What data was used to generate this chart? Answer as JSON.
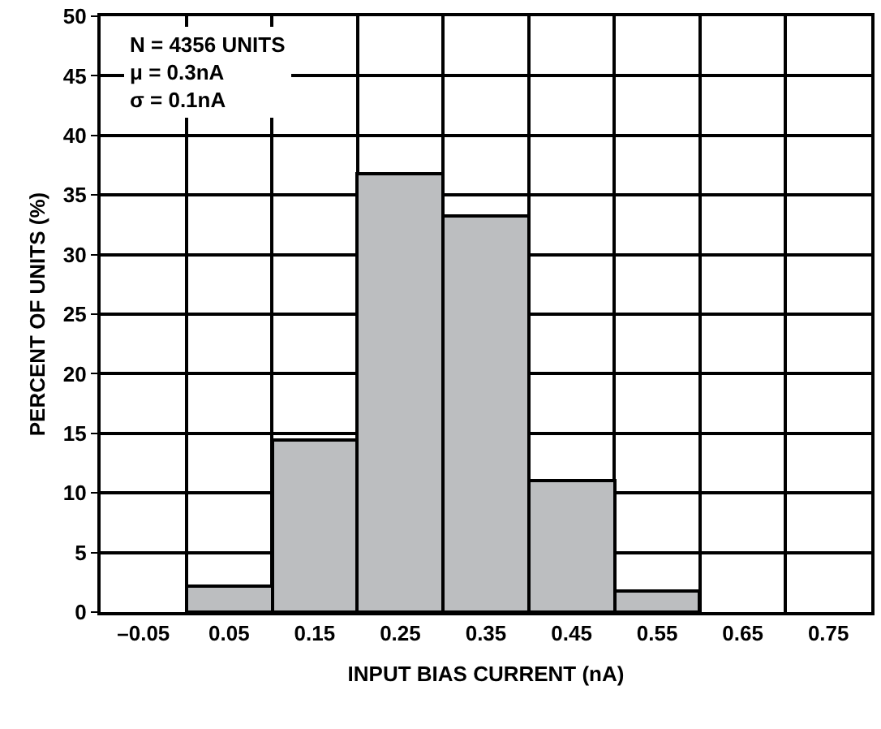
{
  "chart_data": {
    "type": "histogram",
    "xlabel": "INPUT BIAS CURRENT (nA)",
    "ylabel": "PERCENT OF UNITS (%)",
    "bins": [
      -0.1,
      0,
      0.1,
      0.2,
      0.3,
      0.4,
      0.5,
      0.6,
      0.7,
      0.8
    ],
    "values": [
      null,
      2.2,
      14.4,
      36.8,
      33.3,
      11.1,
      1.8,
      null,
      null
    ],
    "color": "#bcbec0",
    "xlim": [
      -0.1,
      0.8
    ],
    "xticks": [
      {
        "value": -0.05,
        "label": "–0.05"
      },
      0.05,
      0.15,
      0.25,
      0.35,
      0.45,
      0.55,
      0.65,
      0.75,
      {
        "value": 0,
        "label": null
      },
      {
        "value": 0.1,
        "label": null
      },
      {
        "value": 0.2,
        "label": null
      },
      {
        "value": 0.3,
        "label": null
      },
      {
        "value": 0.4,
        "label": null
      },
      {
        "value": 0.5,
        "label": null
      },
      {
        "value": 0.6,
        "label": null
      },
      {
        "value": 0.7,
        "label": null
      }
    ],
    "ylim": [
      0,
      50
    ],
    "yticks": [
      0,
      5,
      10,
      15,
      20,
      25,
      30,
      35,
      40,
      45,
      50
    ],
    "grid": true,
    "annotations": [
      "N = 4356 UNITS\nμ = 0.3nA\nσ = 0.1nA"
    ]
  }
}
